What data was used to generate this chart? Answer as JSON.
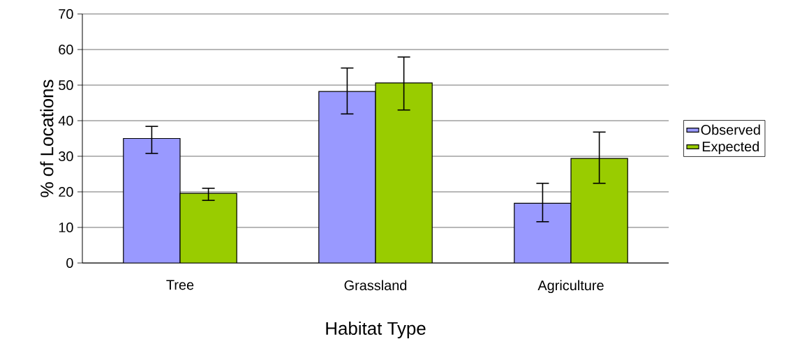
{
  "chart_data": {
    "type": "bar",
    "xlabel": "Habitat Type",
    "ylabel": "% of Locations",
    "categories": [
      "Tree",
      "Grassland",
      "Agriculture"
    ],
    "series": [
      {
        "name": "Observed",
        "color": "#9999ff",
        "values": [
          35,
          48.2,
          16.8
        ],
        "errors": [
          [
            30.8,
            38.4
          ],
          [
            41.9,
            54.8
          ],
          [
            11.6,
            22.4
          ]
        ]
      },
      {
        "name": "Expected",
        "color": "#99cc00",
        "values": [
          19.6,
          50.6,
          29.4
        ],
        "errors": [
          [
            17.6,
            21.0
          ],
          [
            43.0,
            57.9
          ],
          [
            22.4,
            36.8
          ]
        ]
      }
    ],
    "ylim": [
      0,
      70
    ],
    "yticks": [
      0,
      10,
      20,
      30,
      40,
      50,
      60,
      70
    ],
    "grid": "y",
    "legend": "right"
  }
}
